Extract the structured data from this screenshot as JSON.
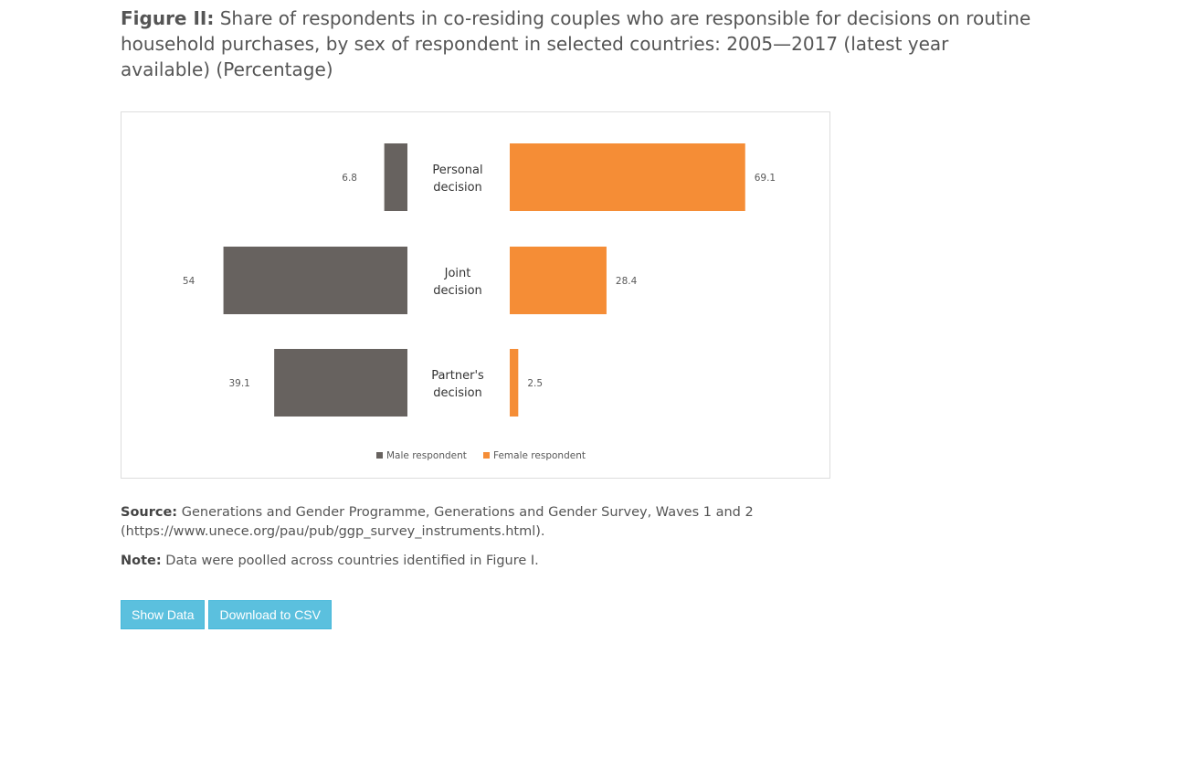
{
  "figure": {
    "label": "Figure II:",
    "title": "Share of respondents in co-residing couples who are responsible for decisions on routine household purchases, by sex of respondent in selected countries: 2005—2017 (latest year available) (Percentage)"
  },
  "chart_data": {
    "type": "bar",
    "orientation": "horizontal-butterfly",
    "categories": [
      [
        "Personal",
        "decision"
      ],
      [
        "Joint",
        "decision"
      ],
      [
        "Partner's",
        "decision"
      ]
    ],
    "series": [
      {
        "name": "Male respondent",
        "values": [
          6.8,
          54,
          39.1
        ],
        "color": "#67625f",
        "side": "left"
      },
      {
        "name": "Female respondent",
        "values": [
          69.1,
          28.4,
          2.5
        ],
        "color": "#f58d36",
        "side": "right"
      }
    ],
    "value_labels": {
      "male": [
        "6.8",
        "54",
        "39.1"
      ],
      "female": [
        "69.1",
        "28.4",
        "2.5"
      ]
    },
    "legend_position": "bottom",
    "grid": false
  },
  "source": {
    "label": "Source:",
    "text": "Generations and Gender Programme, Generations and Gender Survey, Waves 1 and 2 (https://www.unece.org/pau/pub/ggp_survey_instruments.html)."
  },
  "note": {
    "label": "Note:",
    "text": "Data were poolled across countries identified in Figure I."
  },
  "buttons": {
    "show_data": "Show Data",
    "download_csv": "Download to CSV"
  },
  "colors": {
    "accent_button": "#5bc0de",
    "male": "#67625f",
    "female": "#f58d36"
  }
}
